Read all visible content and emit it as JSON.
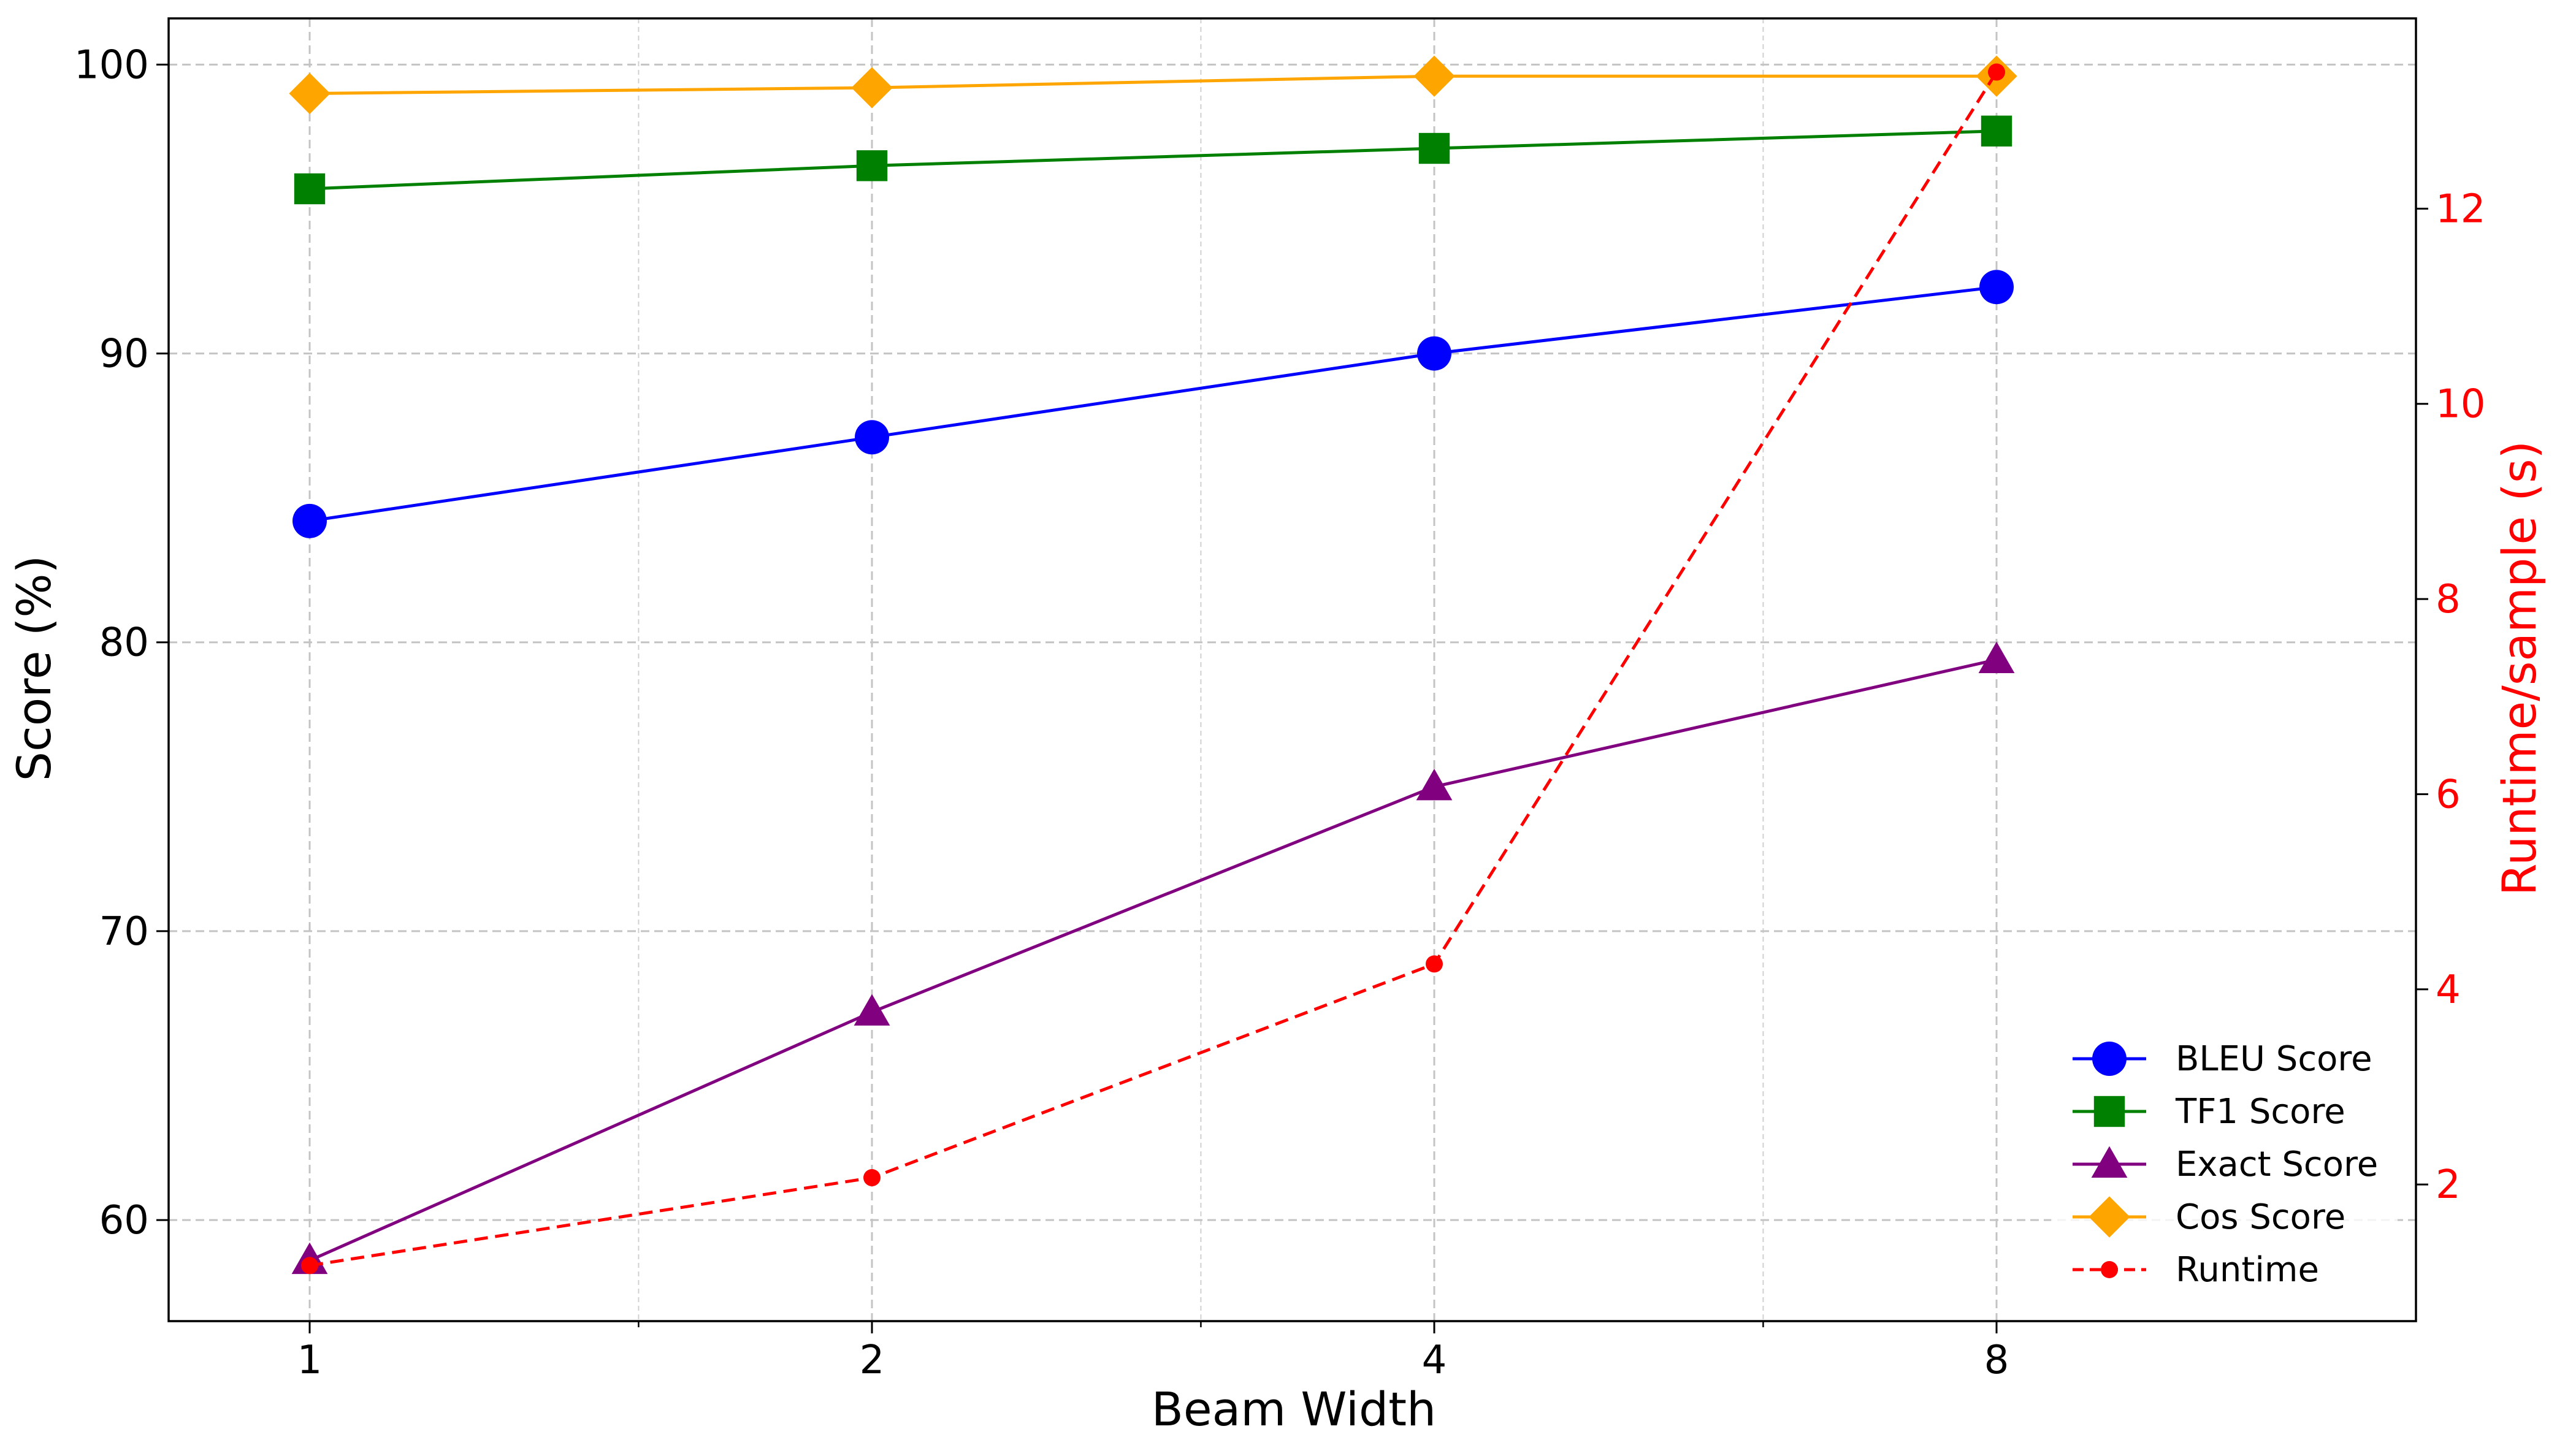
{
  "chart_data": {
    "type": "line",
    "xlabel": "Beam Width",
    "ylabel": "Score (%)",
    "y2label": "Runtime/sample (s)",
    "x": [
      1,
      2,
      4,
      8
    ],
    "x_ticks": [
      "1",
      "2",
      "4",
      "8"
    ],
    "ylim": [
      56.5,
      101.6
    ],
    "y_ticks": [
      "60",
      "70",
      "80",
      "90",
      "100"
    ],
    "y2lim": [
      0.6,
      13.95
    ],
    "y2_ticks": [
      "2",
      "4",
      "6",
      "8",
      "10",
      "12"
    ],
    "grid": true,
    "legend_position": "lower-right",
    "series": [
      {
        "name": "BLEU Score",
        "axis": "left",
        "color": "#0000ff",
        "marker": "circle",
        "dash": "solid",
        "values": [
          84.2,
          87.1,
          90.0,
          92.3
        ]
      },
      {
        "name": "TF1 Score",
        "axis": "left",
        "color": "#008000",
        "marker": "square",
        "dash": "solid",
        "values": [
          95.7,
          96.5,
          97.1,
          97.7
        ]
      },
      {
        "name": "Exact Score",
        "axis": "left",
        "color": "#800080",
        "marker": "triangle",
        "dash": "solid",
        "values": [
          58.6,
          67.2,
          75.0,
          79.4
        ]
      },
      {
        "name": "Cos Score",
        "axis": "left",
        "color": "#ffa500",
        "marker": "diamond",
        "dash": "solid",
        "values": [
          99.0,
          99.2,
          99.6,
          99.6
        ]
      },
      {
        "name": "Runtime",
        "axis": "right",
        "color": "#ff0000",
        "marker": "dot",
        "dash": "dashed",
        "values": [
          1.17,
          2.07,
          4.26,
          13.4
        ]
      }
    ]
  }
}
